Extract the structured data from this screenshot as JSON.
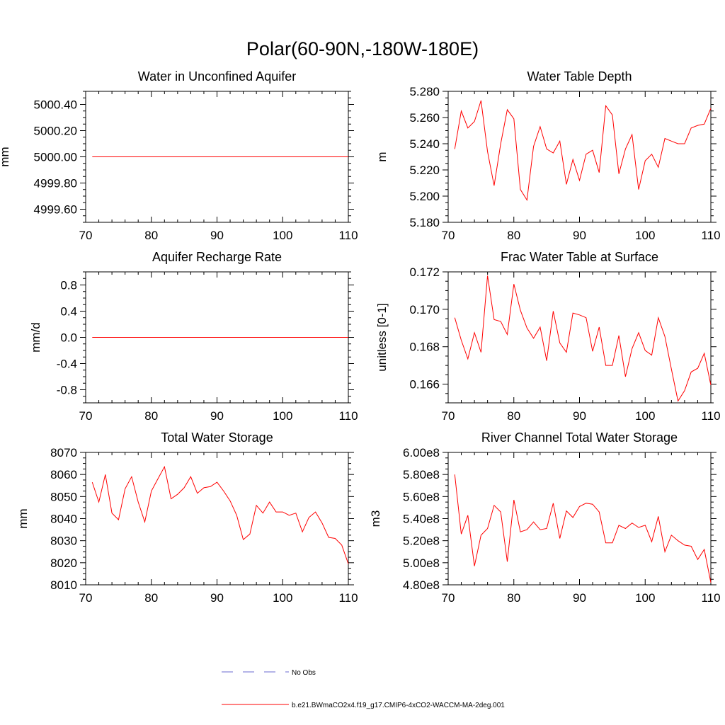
{
  "figure": {
    "title": "Polar(60-90N,-180W-180E)"
  },
  "legend": {
    "entries": [
      {
        "label": "No Obs",
        "color": "#6a6ad0",
        "style": "dashed"
      },
      {
        "label": "b.e21.BWmaCO2x4.f19_g17.CMIP6-4xCO2-WACCM-MA-2deg.001",
        "color": "#ff0000",
        "style": "solid"
      }
    ]
  },
  "chart_data": [
    {
      "type": "line",
      "title": "Water in Unconfined Aquifer",
      "xlabel": "",
      "ylabel": "mm",
      "xlim": [
        70,
        110
      ],
      "ylim": [
        4999.5,
        5000.5
      ],
      "xticks": [
        70,
        80,
        90,
        100,
        110
      ],
      "xtick_labels": [
        "70",
        "80",
        "90",
        "100",
        "110"
      ],
      "yticks": [
        4999.6,
        4999.8,
        5000.0,
        5000.2,
        5000.4
      ],
      "ytick_labels": [
        "4999.60",
        "4999.80",
        "5000.00",
        "5000.20",
        "5000.40"
      ],
      "x": [
        71,
        72,
        73,
        74,
        75,
        76,
        77,
        78,
        79,
        80,
        81,
        82,
        83,
        84,
        85,
        86,
        87,
        88,
        89,
        90,
        91,
        92,
        93,
        94,
        95,
        96,
        97,
        98,
        99,
        100,
        101,
        102,
        103,
        104,
        105,
        106,
        107,
        108,
        109,
        110
      ],
      "series": [
        {
          "name": "b.e21.BWmaCO2x4.f19_g17.CMIP6-4xCO2-WACCM-MA-2deg.001",
          "values": [
            5000,
            5000,
            5000,
            5000,
            5000,
            5000,
            5000,
            5000,
            5000,
            5000,
            5000,
            5000,
            5000,
            5000,
            5000,
            5000,
            5000,
            5000,
            5000,
            5000,
            5000,
            5000,
            5000,
            5000,
            5000,
            5000,
            5000,
            5000,
            5000,
            5000,
            5000,
            5000,
            5000,
            5000,
            5000,
            5000,
            5000,
            5000,
            5000,
            5000
          ]
        }
      ]
    },
    {
      "type": "line",
      "title": "Water Table Depth",
      "xlabel": "",
      "ylabel": "m",
      "xlim": [
        70,
        110
      ],
      "ylim": [
        5.18,
        5.28
      ],
      "xticks": [
        70,
        80,
        90,
        100,
        110
      ],
      "xtick_labels": [
        "70",
        "80",
        "90",
        "100",
        "110"
      ],
      "yticks": [
        5.18,
        5.2,
        5.22,
        5.24,
        5.26,
        5.28
      ],
      "ytick_labels": [
        "5.180",
        "5.200",
        "5.220",
        "5.240",
        "5.260",
        "5.280"
      ],
      "x": [
        71,
        72,
        73,
        74,
        75,
        76,
        77,
        78,
        79,
        80,
        81,
        82,
        83,
        84,
        85,
        86,
        87,
        88,
        89,
        90,
        91,
        92,
        93,
        94,
        95,
        96,
        97,
        98,
        99,
        100,
        101,
        102,
        103,
        104,
        105,
        106,
        107,
        108,
        109,
        110
      ],
      "series": [
        {
          "name": "b.e21.BWmaCO2x4.f19_g17.CMIP6-4xCO2-WACCM-MA-2deg.001",
          "values": [
            5.236,
            5.265,
            5.252,
            5.257,
            5.273,
            5.234,
            5.208,
            5.24,
            5.266,
            5.259,
            5.205,
            5.197,
            5.238,
            5.253,
            5.236,
            5.233,
            5.242,
            5.209,
            5.228,
            5.212,
            5.232,
            5.235,
            5.218,
            5.269,
            5.262,
            5.217,
            5.236,
            5.247,
            5.205,
            5.227,
            5.232,
            5.222,
            5.244,
            5.242,
            5.24,
            5.24,
            5.252,
            5.254,
            5.255,
            5.267
          ]
        }
      ]
    },
    {
      "type": "line",
      "title": "Aquifer Recharge Rate",
      "xlabel": "",
      "ylabel": "mm/d",
      "xlim": [
        70,
        110
      ],
      "ylim": [
        -1.0,
        1.0
      ],
      "xticks": [
        70,
        80,
        90,
        100,
        110
      ],
      "xtick_labels": [
        "70",
        "80",
        "90",
        "100",
        "110"
      ],
      "yticks": [
        -0.8,
        -0.4,
        0.0,
        0.4,
        0.8
      ],
      "ytick_labels": [
        "-0.8",
        "-0.4",
        "0.0",
        "0.4",
        "0.8"
      ],
      "x": [
        71,
        72,
        73,
        74,
        75,
        76,
        77,
        78,
        79,
        80,
        81,
        82,
        83,
        84,
        85,
        86,
        87,
        88,
        89,
        90,
        91,
        92,
        93,
        94,
        95,
        96,
        97,
        98,
        99,
        100,
        101,
        102,
        103,
        104,
        105,
        106,
        107,
        108,
        109,
        110
      ],
      "series": [
        {
          "name": "b.e21.BWmaCO2x4.f19_g17.CMIP6-4xCO2-WACCM-MA-2deg.001",
          "values": [
            0,
            0,
            0,
            0,
            0,
            0,
            0,
            0,
            0,
            0,
            0,
            0,
            0,
            0,
            0,
            0,
            0,
            0,
            0,
            0,
            0,
            0,
            0,
            0,
            0,
            0,
            0,
            0,
            0,
            0,
            0,
            0,
            0,
            0,
            0,
            0,
            0,
            0,
            0,
            0
          ]
        }
      ]
    },
    {
      "type": "line",
      "title": "Frac Water Table at Surface",
      "xlabel": "",
      "ylabel": "unitless [0-1]",
      "xlim": [
        70,
        110
      ],
      "ylim": [
        0.165,
        0.172
      ],
      "xticks": [
        70,
        80,
        90,
        100,
        110
      ],
      "xtick_labels": [
        "70",
        "80",
        "90",
        "100",
        "110"
      ],
      "yticks": [
        0.166,
        0.168,
        0.17,
        0.172
      ],
      "ytick_labels": [
        "0.166",
        "0.168",
        "0.170",
        "0.172"
      ],
      "x": [
        71,
        72,
        73,
        74,
        75,
        76,
        77,
        78,
        79,
        80,
        81,
        82,
        83,
        84,
        85,
        86,
        87,
        88,
        89,
        90,
        91,
        92,
        93,
        94,
        95,
        96,
        97,
        98,
        99,
        100,
        101,
        102,
        103,
        104,
        105,
        106,
        107,
        108,
        109,
        110
      ],
      "series": [
        {
          "name": "b.e21.BWmaCO2x4.f19_g17.CMIP6-4xCO2-WACCM-MA-2deg.001",
          "values": [
            0.16955,
            0.16835,
            0.16735,
            0.16875,
            0.1677,
            0.1718,
            0.16945,
            0.16935,
            0.16865,
            0.17135,
            0.16995,
            0.169,
            0.16845,
            0.16905,
            0.16725,
            0.1699,
            0.1682,
            0.1677,
            0.1698,
            0.1697,
            0.16955,
            0.16775,
            0.16905,
            0.167,
            0.167,
            0.1686,
            0.1664,
            0.1679,
            0.16875,
            0.1678,
            0.16755,
            0.16955,
            0.16855,
            0.1668,
            0.1651,
            0.16565,
            0.16665,
            0.16685,
            0.16765,
            0.16595
          ]
        }
      ]
    },
    {
      "type": "line",
      "title": "Total Water Storage",
      "xlabel": "",
      "ylabel": "mm",
      "xlim": [
        70,
        110
      ],
      "ylim": [
        8010,
        8070
      ],
      "xticks": [
        70,
        80,
        90,
        100,
        110
      ],
      "xtick_labels": [
        "70",
        "80",
        "90",
        "100",
        "110"
      ],
      "yticks": [
        8010,
        8020,
        8030,
        8040,
        8050,
        8060,
        8070
      ],
      "ytick_labels": [
        "8010",
        "8020",
        "8030",
        "8040",
        "8050",
        "8060",
        "8070"
      ],
      "x": [
        71,
        72,
        73,
        74,
        75,
        76,
        77,
        78,
        79,
        80,
        81,
        82,
        83,
        84,
        85,
        86,
        87,
        88,
        89,
        90,
        91,
        92,
        93,
        94,
        95,
        96,
        97,
        98,
        99,
        100,
        101,
        102,
        103,
        104,
        105,
        106,
        107,
        108,
        109,
        110
      ],
      "series": [
        {
          "name": "b.e21.BWmaCO2x4.f19_g17.CMIP6-4xCO2-WACCM-MA-2deg.001",
          "values": [
            8056.5,
            8047.5,
            8060.0,
            8042.5,
            8039.5,
            8053.5,
            8059.0,
            8047.5,
            8038.5,
            8052.5,
            8058.0,
            8063.5,
            8049.0,
            8051.0,
            8054.0,
            8059.0,
            8051.5,
            8054.0,
            8054.5,
            8056.5,
            8052.5,
            8048.0,
            8041.5,
            8030.5,
            8033.0,
            8046.0,
            8042.5,
            8047.5,
            8043.0,
            8043.0,
            8041.5,
            8042.5,
            8034.0,
            8040.5,
            8043.0,
            8038.0,
            8031.5,
            8031.0,
            8028.0,
            8019.5
          ]
        }
      ]
    },
    {
      "type": "line",
      "title": "River Channel Total Water Storage",
      "xlabel": "",
      "ylabel": "m3",
      "xlim": [
        70,
        110
      ],
      "ylim": [
        480000000.0,
        600000000.0
      ],
      "xticks": [
        70,
        80,
        90,
        100,
        110
      ],
      "xtick_labels": [
        "70",
        "80",
        "90",
        "100",
        "110"
      ],
      "yticks": [
        480000000.0,
        500000000.0,
        520000000.0,
        540000000.0,
        560000000.0,
        580000000.0,
        600000000.0
      ],
      "ytick_labels": [
        "4.80e8",
        "5.00e8",
        "5.20e8",
        "5.40e8",
        "5.60e8",
        "5.80e8",
        "6.00e8"
      ],
      "x": [
        71,
        72,
        73,
        74,
        75,
        76,
        77,
        78,
        79,
        80,
        81,
        82,
        83,
        84,
        85,
        86,
        87,
        88,
        89,
        90,
        91,
        92,
        93,
        94,
        95,
        96,
        97,
        98,
        99,
        100,
        101,
        102,
        103,
        104,
        105,
        106,
        107,
        108,
        109,
        110
      ],
      "series": [
        {
          "name": "b.e21.BWmaCO2x4.f19_g17.CMIP6-4xCO2-WACCM-MA-2deg.001",
          "values": [
            580000000.0,
            526000000.0,
            543000000.0,
            497000000.0,
            525000000.0,
            531000000.0,
            552000000.0,
            546000000.0,
            501000000.0,
            557000000.0,
            528000000.0,
            530000000.0,
            537000000.0,
            530000000.0,
            531000000.0,
            554000000.0,
            522000000.0,
            547000000.0,
            541000000.0,
            551000000.0,
            554000000.0,
            553000000.0,
            546000000.0,
            518000000.0,
            518000000.0,
            534000000.0,
            531000000.0,
            536000000.0,
            532000000.0,
            534000000.0,
            519000000.0,
            542000000.0,
            510000000.0,
            525000000.0,
            520000000.0,
            516000000.0,
            515000000.0,
            503000000.0,
            512000000.0,
            482000000.0
          ]
        }
      ]
    }
  ]
}
